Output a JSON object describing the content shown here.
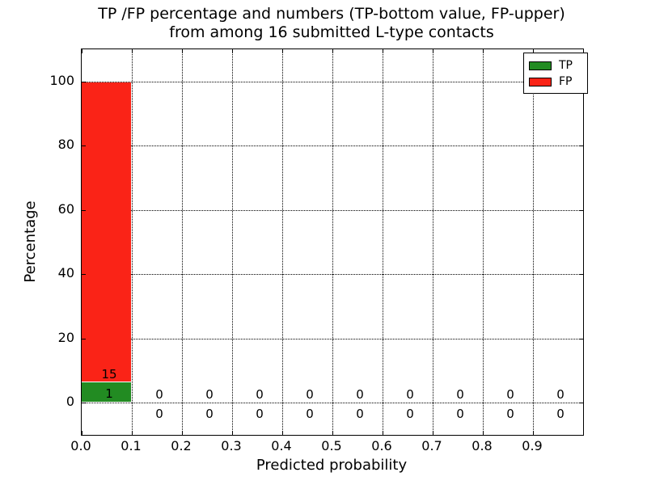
{
  "chart_data": {
    "type": "bar",
    "stacked": true,
    "title_line1": "TP /FP percentage and numbers (TP-bottom value, FP-upper)",
    "title_line2": "from among 16 submitted L-type contacts",
    "xlabel": "Predicted probability",
    "ylabel": "Percentage",
    "total_contacts": 16,
    "xlim": [
      0.0,
      1.0
    ],
    "ylim": [
      -10,
      110
    ],
    "xtick_labels": [
      "0.0",
      "0.1",
      "0.2",
      "0.3",
      "0.4",
      "0.5",
      "0.6",
      "0.7",
      "0.8",
      "0.9"
    ],
    "ytick_labels": [
      "0",
      "20",
      "40",
      "60",
      "80",
      "100"
    ],
    "grid_style": "dotted",
    "bin_width": 0.1,
    "colors": {
      "tp": "#228b22",
      "fp": "#fa2317",
      "axis": "#000000",
      "background": "#ffffff"
    },
    "legend": {
      "position": "upper right",
      "entries": [
        {
          "label": "TP",
          "color": "#228b22"
        },
        {
          "label": "FP",
          "color": "#fa2317"
        }
      ]
    },
    "bins": [
      {
        "x0": 0.0,
        "tp_count": 1,
        "fp_count": 15,
        "tp_pct": 6.25,
        "fp_pct": 93.75
      },
      {
        "x0": 0.1,
        "tp_count": 0,
        "fp_count": 0,
        "tp_pct": 0,
        "fp_pct": 0
      },
      {
        "x0": 0.2,
        "tp_count": 0,
        "fp_count": 0,
        "tp_pct": 0,
        "fp_pct": 0
      },
      {
        "x0": 0.3,
        "tp_count": 0,
        "fp_count": 0,
        "tp_pct": 0,
        "fp_pct": 0
      },
      {
        "x0": 0.4,
        "tp_count": 0,
        "fp_count": 0,
        "tp_pct": 0,
        "fp_pct": 0
      },
      {
        "x0": 0.5,
        "tp_count": 0,
        "fp_count": 0,
        "tp_pct": 0,
        "fp_pct": 0
      },
      {
        "x0": 0.6,
        "tp_count": 0,
        "fp_count": 0,
        "tp_pct": 0,
        "fp_pct": 0
      },
      {
        "x0": 0.7,
        "tp_count": 0,
        "fp_count": 0,
        "tp_pct": 0,
        "fp_pct": 0
      },
      {
        "x0": 0.8,
        "tp_count": 0,
        "fp_count": 0,
        "tp_pct": 0,
        "fp_pct": 0
      },
      {
        "x0": 0.9,
        "tp_count": 0,
        "fp_count": 0,
        "tp_pct": 0,
        "fp_pct": 0
      }
    ]
  }
}
